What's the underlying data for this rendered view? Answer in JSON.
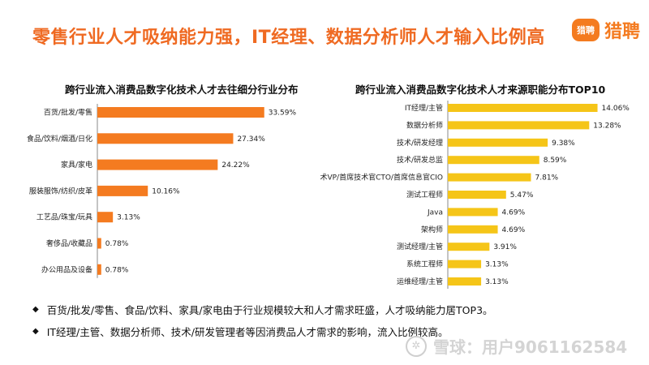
{
  "header": {
    "title": "零售行业人才吸纳能力强，IT经理、数据分析师人才输入比例高",
    "logo_mark": "猎聘",
    "logo_text": "猎聘"
  },
  "colors": {
    "accent": "#ef6a22",
    "left_bar": "#f47b20",
    "right_bar": "#f5c518"
  },
  "chart_data": [
    {
      "type": "bar",
      "orientation": "horizontal",
      "title": "跨行业流入消费品数字化技术人才去往细分行业分布",
      "categories": [
        "百货/批发/零售",
        "食品/饮料/烟酒/日化",
        "家具/家电",
        "服装服饰/纺织/皮革",
        "工艺品/珠宝/玩具",
        "奢侈品/收藏品",
        "办公用品及设备"
      ],
      "values": [
        33.59,
        27.34,
        24.22,
        10.16,
        3.13,
        0.78,
        0.78
      ],
      "labels": [
        "33.59%",
        "27.34%",
        "24.22%",
        "10.16%",
        "3.13%",
        "0.78%",
        "0.78%"
      ],
      "xlim": [
        0,
        40
      ],
      "grid": false
    },
    {
      "type": "bar",
      "orientation": "horizontal",
      "title": "跨行业流入消费品数字化技术人才来源职能分布TOP10",
      "categories": [
        "IT经理/主管",
        "数据分析师",
        "技术/研发经理",
        "技术/研发总监",
        "技术VP/首席技术官CTO/首席信息官CIO",
        "测试工程师",
        "Java",
        "架构师",
        "测试经理/主管",
        "系统工程师",
        "运维经理/主管"
      ],
      "values": [
        14.06,
        13.28,
        9.38,
        8.59,
        7.81,
        5.47,
        4.69,
        4.69,
        3.91,
        3.13,
        3.13
      ],
      "labels": [
        "14.06%",
        "13.28%",
        "9.38%",
        "8.59%",
        "7.81%",
        "5.47%",
        "4.69%",
        "4.69%",
        "3.91%",
        "3.13%",
        "3.13%"
      ],
      "xlim": [
        0,
        16
      ],
      "grid": false
    }
  ],
  "notes": [
    "百货/批发/零售、食品/饮料、家具/家电由于行业规模较大和人才需求旺盛，人才吸纳能力居TOP3。",
    "IT经理/主管、数据分析师、技术/研发管理者等因消费品人才需求的影响，流入比例较高。"
  ],
  "watermark": {
    "icon": "snowball-icon",
    "text": "雪球：用户9061162584"
  }
}
